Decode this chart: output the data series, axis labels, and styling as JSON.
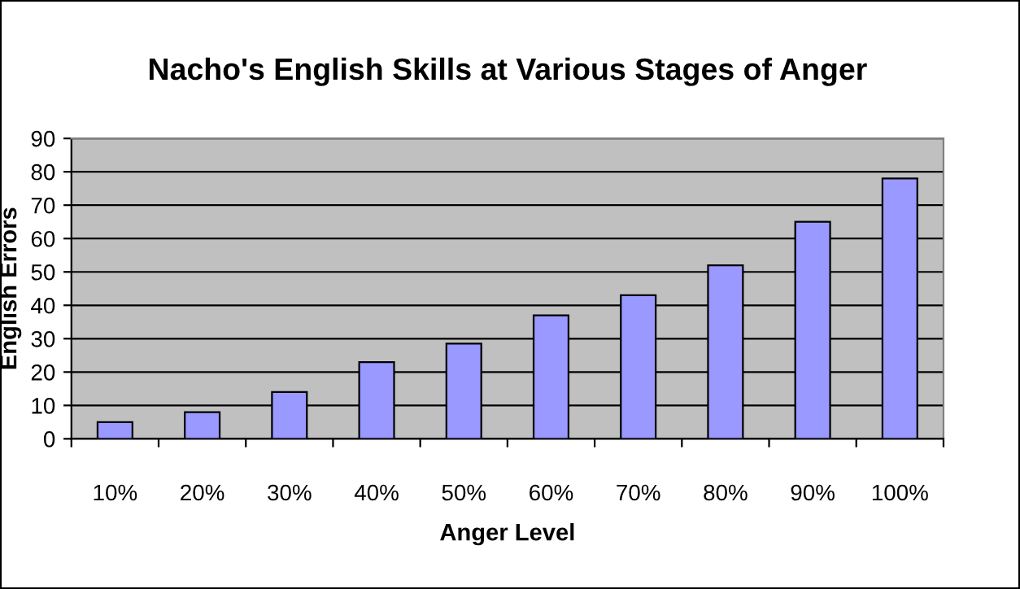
{
  "chart_data": {
    "type": "bar",
    "title": "Nacho's English Skills at Various Stages of Anger",
    "xlabel": "Anger Level",
    "ylabel": "English Errors",
    "categories": [
      "10%",
      "20%",
      "30%",
      "40%",
      "50%",
      "60%",
      "70%",
      "80%",
      "90%",
      "100%"
    ],
    "values": [
      5,
      8,
      14,
      23,
      28.5,
      37,
      43,
      52,
      65,
      78
    ],
    "color": "#9999ff",
    "ylim": [
      0,
      90
    ],
    "yticks": [
      0,
      10,
      20,
      30,
      40,
      50,
      60,
      70,
      80,
      90
    ],
    "grid": "y",
    "legend": false
  }
}
